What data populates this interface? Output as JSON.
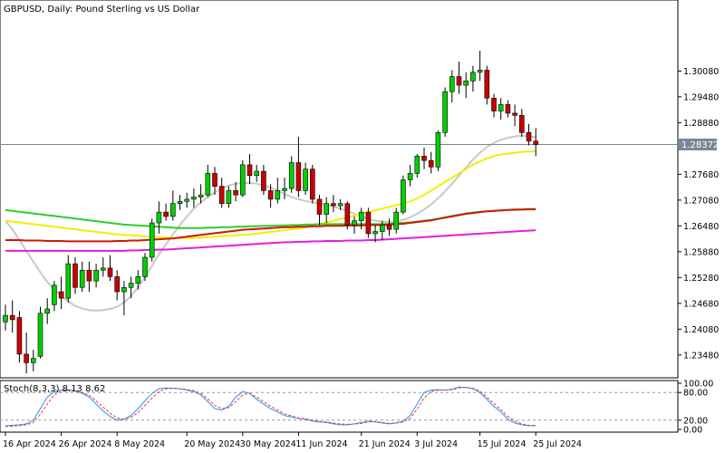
{
  "window": {
    "title": "GBPUSD, Daily:  Pound Sterling vs US Dollar"
  },
  "chart_data": [
    {
      "type": "candlestick",
      "symbol": "GBPUSD",
      "timeframe": "Daily",
      "title": "GBPUSD, Daily:  Pound Sterling vs US Dollar",
      "y_ticks": [
        "1.30080",
        "1.29480",
        "1.28880",
        "1.27680",
        "1.27080",
        "1.26480",
        "1.25880",
        "1.25280",
        "1.24680",
        "1.24080",
        "1.23480"
      ],
      "ylim": [
        1.2295,
        1.3173
      ],
      "x_ticks": [
        {
          "index": 0,
          "label": "16 Apr 2024"
        },
        {
          "index": 8,
          "label": "26 Apr 2024"
        },
        {
          "index": 16,
          "label": "8 May 2024"
        },
        {
          "index": 26,
          "label": "20 May 2024"
        },
        {
          "index": 34,
          "label": "30 May 2024"
        },
        {
          "index": 42,
          "label": "11 Jun 2024"
        },
        {
          "index": 51,
          "label": "21 Jun 2024"
        },
        {
          "index": 59,
          "label": "3 Jul 2024"
        },
        {
          "index": 68,
          "label": "15 Jul 2024"
        },
        {
          "index": 76,
          "label": "25 Jul 2024"
        }
      ],
      "current_price": "1.28372",
      "current_price_value": 1.28372,
      "colors": {
        "bull": "#00d000",
        "bear": "#cc0000",
        "wick": "#000000",
        "price_line": "#778899"
      },
      "candles": [
        [
          1.2425,
          1.2465,
          1.2405,
          1.244
        ],
        [
          1.244,
          1.2475,
          1.24,
          1.243
        ],
        [
          1.2435,
          1.245,
          1.233,
          1.235
        ],
        [
          1.235,
          1.24,
          1.2305,
          1.233
        ],
        [
          1.233,
          1.236,
          1.231,
          1.234
        ],
        [
          1.2345,
          1.246,
          1.234,
          1.2445
        ],
        [
          1.2445,
          1.248,
          1.242,
          1.2455
        ],
        [
          1.2465,
          1.252,
          1.245,
          1.251
        ],
        [
          1.2495,
          1.253,
          1.2455,
          1.248
        ],
        [
          1.248,
          1.258,
          1.247,
          1.256
        ],
        [
          1.256,
          1.2575,
          1.249,
          1.2505
        ],
        [
          1.2505,
          1.2565,
          1.2495,
          1.2545
        ],
        [
          1.2545,
          1.2565,
          1.2495,
          1.252
        ],
        [
          1.252,
          1.256,
          1.2505,
          1.2545
        ],
        [
          1.2545,
          1.2575,
          1.253,
          1.255
        ],
        [
          1.255,
          1.258,
          1.252,
          1.253
        ],
        [
          1.253,
          1.2545,
          1.2475,
          1.2495
        ],
        [
          1.2495,
          1.252,
          1.244,
          1.2505
        ],
        [
          1.2505,
          1.253,
          1.248,
          1.2515
        ],
        [
          1.2515,
          1.2545,
          1.25,
          1.253
        ],
        [
          1.253,
          1.2585,
          1.252,
          1.2575
        ],
        [
          1.2575,
          1.2665,
          1.2565,
          1.2655
        ],
        [
          1.2655,
          1.2705,
          1.263,
          1.268
        ],
        [
          1.268,
          1.27,
          1.266,
          1.267
        ],
        [
          1.267,
          1.273,
          1.266,
          1.27
        ],
        [
          1.27,
          1.272,
          1.2685,
          1.2705
        ],
        [
          1.2705,
          1.2725,
          1.269,
          1.271
        ],
        [
          1.271,
          1.2735,
          1.269,
          1.2715
        ],
        [
          1.2715,
          1.2745,
          1.27,
          1.272
        ],
        [
          1.272,
          1.279,
          1.2715,
          1.277
        ],
        [
          1.277,
          1.2785,
          1.272,
          1.274
        ],
        [
          1.274,
          1.276,
          1.269,
          1.27
        ],
        [
          1.27,
          1.274,
          1.269,
          1.273
        ],
        [
          1.273,
          1.275,
          1.2705,
          1.272
        ],
        [
          1.272,
          1.28,
          1.2715,
          1.279
        ],
        [
          1.279,
          1.2815,
          1.2745,
          1.2765
        ],
        [
          1.2765,
          1.279,
          1.275,
          1.2775
        ],
        [
          1.2775,
          1.279,
          1.272,
          1.273
        ],
        [
          1.273,
          1.2745,
          1.269,
          1.271
        ],
        [
          1.271,
          1.276,
          1.27,
          1.273
        ],
        [
          1.273,
          1.276,
          1.271,
          1.2735
        ],
        [
          1.2735,
          1.281,
          1.2725,
          1.2795
        ],
        [
          1.2795,
          1.2855,
          1.2715,
          1.273
        ],
        [
          1.273,
          1.2795,
          1.272,
          1.278
        ],
        [
          1.278,
          1.279,
          1.27,
          1.271
        ],
        [
          1.271,
          1.272,
          1.265,
          1.2675
        ],
        [
          1.2675,
          1.2715,
          1.2655,
          1.27
        ],
        [
          1.27,
          1.272,
          1.268,
          1.2695
        ],
        [
          1.2695,
          1.271,
          1.2685,
          1.27
        ],
        [
          1.27,
          1.2705,
          1.264,
          1.265
        ],
        [
          1.265,
          1.267,
          1.263,
          1.266
        ],
        [
          1.266,
          1.269,
          1.264,
          1.268
        ],
        [
          1.268,
          1.269,
          1.262,
          1.263
        ],
        [
          1.263,
          1.265,
          1.261,
          1.2635
        ],
        [
          1.2635,
          1.266,
          1.2615,
          1.265
        ],
        [
          1.265,
          1.2665,
          1.2625,
          1.264
        ],
        [
          1.264,
          1.269,
          1.263,
          1.268
        ],
        [
          1.268,
          1.2765,
          1.2675,
          1.2755
        ],
        [
          1.2755,
          1.279,
          1.274,
          1.277
        ],
        [
          1.277,
          1.2815,
          1.276,
          1.281
        ],
        [
          1.281,
          1.283,
          1.278,
          1.28
        ],
        [
          1.28,
          1.282,
          1.277,
          1.2785
        ],
        [
          1.2785,
          1.287,
          1.2775,
          1.2865
        ],
        [
          1.2865,
          1.297,
          1.2855,
          1.296
        ],
        [
          1.296,
          1.301,
          1.2935,
          1.2995
        ],
        [
          1.2995,
          1.303,
          1.2955,
          1.2975
        ],
        [
          1.2975,
          1.3005,
          1.2945,
          1.2985
        ],
        [
          1.2985,
          1.302,
          1.296,
          1.3005
        ],
        [
          1.3005,
          1.3055,
          1.2985,
          1.301
        ],
        [
          1.301,
          1.302,
          1.293,
          1.2945
        ],
        [
          1.2945,
          1.2955,
          1.29,
          1.2915
        ],
        [
          1.2915,
          1.2945,
          1.2895,
          1.293
        ],
        [
          1.293,
          1.294,
          1.29,
          1.291
        ],
        [
          1.291,
          1.293,
          1.288,
          1.2905
        ],
        [
          1.2905,
          1.292,
          1.2855,
          1.2865
        ],
        [
          1.2865,
          1.2885,
          1.2835,
          1.2845
        ],
        [
          1.2845,
          1.2875,
          1.281,
          1.2837
        ]
      ],
      "moving_averages": [
        {
          "color": "#c8c8c8",
          "values": [
            1.266,
            1.264,
            1.2615,
            1.259,
            1.2565,
            1.254,
            1.2518,
            1.25,
            1.2485,
            1.2472,
            1.2462,
            1.2456,
            1.2452,
            1.2451,
            1.2452,
            1.2455,
            1.246,
            1.247,
            1.2485,
            1.2505,
            1.253,
            1.2555,
            1.2582,
            1.2605,
            1.2628,
            1.265,
            1.267,
            1.2688,
            1.2703,
            1.2715,
            1.2726,
            1.2735,
            1.2742,
            1.2746,
            1.2748,
            1.2748,
            1.2746,
            1.2742,
            1.2737,
            1.273,
            1.2722,
            1.2715,
            1.271,
            1.2706,
            1.2703,
            1.27,
            1.2697,
            1.2693,
            1.2688,
            1.2683,
            1.2676,
            1.267,
            1.2664,
            1.266,
            1.2658,
            1.2657,
            1.2658,
            1.2662,
            1.2668,
            1.2676,
            1.2686,
            1.2698,
            1.2712,
            1.2728,
            1.2746,
            1.2765,
            1.2784,
            1.2802,
            1.2818,
            1.2831,
            1.2841,
            1.2848,
            1.2853,
            1.2856,
            1.2858,
            1.2856,
            1.2854
          ]
        },
        {
          "color": "#f0f000",
          "values": [
            1.266,
            1.2658,
            1.2656,
            1.2654,
            1.2652,
            1.265,
            1.2648,
            1.2646,
            1.2644,
            1.2642,
            1.264,
            1.2638,
            1.2636,
            1.2634,
            1.2632,
            1.263,
            1.2628,
            1.2627,
            1.2626,
            1.2625,
            1.2624,
            1.2623,
            1.2622,
            1.2621,
            1.262,
            1.262,
            1.262,
            1.262,
            1.2621,
            1.2622,
            1.2623,
            1.2624,
            1.2625,
            1.2626,
            1.2627,
            1.2628,
            1.263,
            1.2632,
            1.2634,
            1.2636,
            1.2638,
            1.264,
            1.2642,
            1.2645,
            1.2648,
            1.2652,
            1.2656,
            1.266,
            1.2664,
            1.2668,
            1.2672,
            1.2676,
            1.268,
            1.2684,
            1.2688,
            1.2692,
            1.2696,
            1.27,
            1.2705,
            1.2712,
            1.272,
            1.273,
            1.274,
            1.275,
            1.276,
            1.277,
            1.278,
            1.279,
            1.2798,
            1.2805,
            1.281,
            1.2814,
            1.2816,
            1.2818,
            1.282,
            1.2821,
            1.2822
          ]
        },
        {
          "color": "#2ecc2e",
          "values": [
            1.2685,
            1.2683,
            1.2681,
            1.2679,
            1.2677,
            1.2675,
            1.2673,
            1.2671,
            1.2669,
            1.2667,
            1.2665,
            1.2663,
            1.2661,
            1.2659,
            1.2657,
            1.2655,
            1.2653,
            1.2651,
            1.265,
            1.2649,
            1.2648,
            1.2647,
            1.2646,
            1.2645,
            1.2644,
            1.2643,
            1.2643,
            1.2643,
            1.2643,
            1.2644,
            1.2644,
            1.2645,
            1.2645,
            1.2646,
            1.2646,
            1.2647,
            1.2647,
            1.2648,
            1.2648,
            1.2649,
            1.2649,
            1.265,
            1.265,
            1.2651,
            1.2651,
            1.2652,
            1.2652,
            1.2652,
            1.2652,
            1.2652,
            1.2652,
            1.2652,
            1.2652,
            1.2652,
            1.2652,
            1.2653,
            1.2654,
            1.2655,
            1.2656,
            1.2658,
            1.266,
            1.2662,
            1.2665,
            1.2668,
            1.2671,
            1.2674,
            1.2677,
            1.2679,
            1.2681,
            1.2682,
            1.2683,
            1.2684,
            1.2685,
            1.2685,
            1.2686,
            1.2686,
            1.2686
          ]
        },
        {
          "color": "#cc1a00",
          "values": [
            1.2615,
            1.2615,
            1.2615,
            1.2614,
            1.2614,
            1.2614,
            1.2613,
            1.2613,
            1.2613,
            1.2612,
            1.2612,
            1.2612,
            1.2612,
            1.2612,
            1.2612,
            1.2612,
            1.2613,
            1.2613,
            1.2614,
            1.2614,
            1.2615,
            1.2616,
            1.2617,
            1.2618,
            1.2619,
            1.2621,
            1.2623,
            1.2625,
            1.2627,
            1.2629,
            1.2631,
            1.2633,
            1.2635,
            1.2637,
            1.2639,
            1.264,
            1.2641,
            1.2642,
            1.2643,
            1.2644,
            1.2645,
            1.2645,
            1.2646,
            1.2646,
            1.2647,
            1.2647,
            1.2648,
            1.2648,
            1.2648,
            1.2649,
            1.2649,
            1.2649,
            1.265,
            1.265,
            1.265,
            1.2651,
            1.2652,
            1.2653,
            1.2655,
            1.2657,
            1.2659,
            1.2661,
            1.2664,
            1.2667,
            1.267,
            1.2673,
            1.2676,
            1.2678,
            1.268,
            1.2682,
            1.2683,
            1.2684,
            1.2685,
            1.2686,
            1.2686,
            1.2687,
            1.2687
          ]
        },
        {
          "color": "#e020e0",
          "values": [
            1.259,
            1.259,
            1.259,
            1.259,
            1.259,
            1.259,
            1.259,
            1.259,
            1.259,
            1.259,
            1.259,
            1.259,
            1.259,
            1.259,
            1.259,
            1.259,
            1.259,
            1.259,
            1.2591,
            1.2591,
            1.2592,
            1.2592,
            1.2593,
            1.2593,
            1.2594,
            1.2595,
            1.2596,
            1.2597,
            1.2598,
            1.2599,
            1.26,
            1.2601,
            1.2602,
            1.2603,
            1.2604,
            1.2605,
            1.2606,
            1.2607,
            1.2608,
            1.2609,
            1.261,
            1.261,
            1.2611,
            1.2611,
            1.2612,
            1.2612,
            1.2613,
            1.2613,
            1.2613,
            1.2614,
            1.2614,
            1.2614,
            1.2615,
            1.2615,
            1.2616,
            1.2617,
            1.2618,
            1.2619,
            1.262,
            1.2621,
            1.2622,
            1.2623,
            1.2624,
            1.2625,
            1.2626,
            1.2627,
            1.2628,
            1.2629,
            1.263,
            1.2631,
            1.2632,
            1.2633,
            1.2634,
            1.2635,
            1.2636,
            1.2637,
            1.2638
          ]
        }
      ]
    },
    {
      "type": "line",
      "title": "Stoch(8,3,3) 8.13 8.62",
      "ylim": [
        0,
        100
      ],
      "y_ticks": [
        "100.00",
        "80.00",
        "20.00",
        "0.00"
      ],
      "levels": [
        80,
        20
      ],
      "series": [
        {
          "color": "#1e90ff",
          "style": "solid",
          "values": [
            8,
            9,
            10,
            12,
            20,
            45,
            70,
            82,
            85,
            86,
            83,
            78,
            70,
            55,
            40,
            28,
            20,
            22,
            30,
            45,
            62,
            78,
            88,
            90,
            89,
            88,
            85,
            82,
            75,
            60,
            45,
            42,
            50,
            70,
            82,
            78,
            65,
            55,
            45,
            38,
            30,
            27,
            24,
            22,
            18,
            16,
            15,
            12,
            10,
            10,
            12,
            15,
            18,
            16,
            14,
            12,
            14,
            18,
            30,
            55,
            80,
            85,
            86,
            85,
            87,
            92,
            91,
            88,
            80,
            65,
            50,
            38,
            22,
            14,
            10,
            8,
            8
          ]
        },
        {
          "color": "#ff3030",
          "style": "dashed",
          "values": [
            6,
            7,
            8,
            10,
            15,
            33,
            55,
            75,
            83,
            85,
            84,
            80,
            74,
            62,
            48,
            35,
            25,
            22,
            26,
            36,
            52,
            68,
            82,
            88,
            89,
            88,
            86,
            84,
            78,
            66,
            52,
            45,
            47,
            60,
            75,
            78,
            70,
            60,
            50,
            42,
            34,
            29,
            25,
            23,
            20,
            17,
            16,
            14,
            12,
            11,
            12,
            13,
            16,
            17,
            15,
            13,
            14,
            16,
            24,
            44,
            68,
            82,
            85,
            85,
            86,
            90,
            91,
            89,
            83,
            70,
            56,
            43,
            28,
            18,
            12,
            9,
            8.6
          ]
        }
      ]
    }
  ]
}
